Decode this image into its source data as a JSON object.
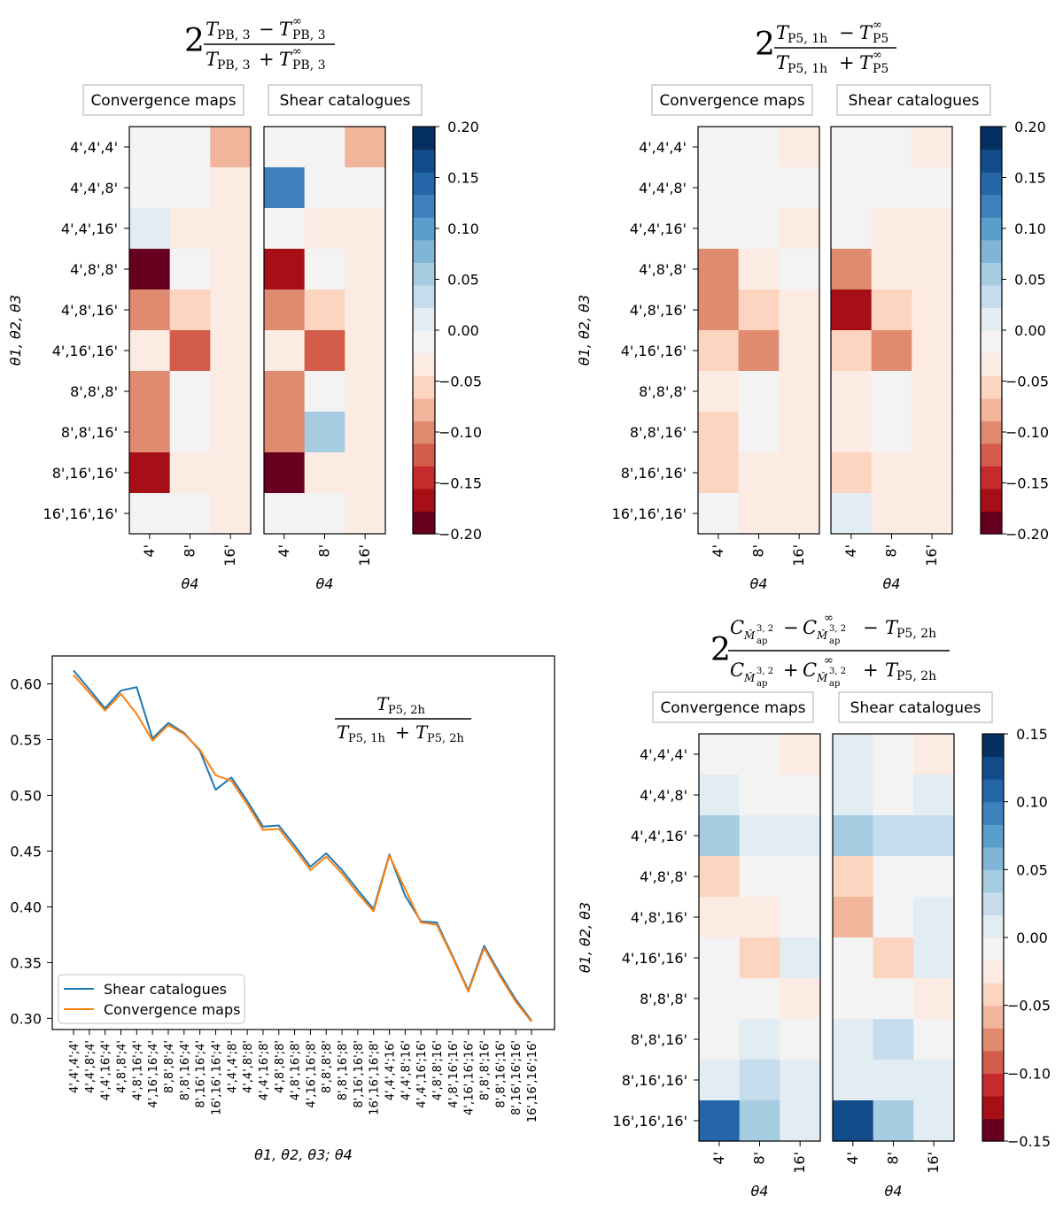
{
  "colors": {
    "scale": [
      "#67001f",
      "#a50f15",
      "#c52a2d",
      "#d45c4a",
      "#e08a70",
      "#f1b59c",
      "#fbd5c0",
      "#fcebe2",
      "#f3f3f3",
      "#e2ecf3",
      "#c6dcec",
      "#a6cce1",
      "#80b5d7",
      "#5a9ecb",
      "#3d80bb",
      "#2566a8",
      "#134c8b",
      "#053061"
    ],
    "shear_line": "#1f77b4",
    "conv_line": "#ff7f0e"
  },
  "text": {
    "box_conv": "Convergence maps",
    "box_shear": "Shear catalogues",
    "ylabel": "θ1, θ2, θ3",
    "xlabel": "θ4",
    "f1": {
      "num_a": "T",
      "num_a_sub": "PB, 3",
      "minus": "−",
      "num_b": "T",
      "num_b_sub": "PB, 3",
      "num_b_sup": "∞",
      "den_a": "T",
      "den_a_sub": "PB, 3",
      "plus": "+",
      "den_b": "T",
      "den_b_sub": "PB, 3",
      "den_b_sup": "∞",
      "two": "2"
    },
    "f2": {
      "num_a": "T",
      "num_a_sub": "P5, 1h",
      "minus": "−",
      "num_b": "T",
      "num_b_sub": "P5",
      "num_b_sup": "∞",
      "den_a": "T",
      "den_a_sub": "P5, 1h",
      "plus": "+",
      "den_b": "T",
      "den_b_sub": "P5",
      "den_b_sup": "∞",
      "two": "2"
    },
    "f3": {
      "c1": "C",
      "m1": "M̂",
      "m1_sup": "3, 2",
      "m1_sub": "ap",
      "minus1": "−",
      "c2": "C",
      "c2_sup": "∞",
      "m2": "M̂",
      "m2_sup": "3, 2",
      "m2_sub": "ap",
      "minus2": "−",
      "t1": "T",
      "t1_sub": "P5, 2h",
      "c3": "C",
      "m3": "M̂",
      "m3_sup": "3, 2",
      "m3_sub": "ap",
      "plus1": "+",
      "c4": "C",
      "c4_sup": "∞",
      "m4": "M̂",
      "m4_sup": "3, 2",
      "m4_sub": "ap",
      "plus2": "+",
      "t2": "T",
      "t2_sub": "P5, 2h",
      "two": "2"
    },
    "line_title": {
      "num": "T",
      "num_sub": "P5, 2h",
      "den_a": "T",
      "den_a_sub": "P5, 1h",
      "plus": "+",
      "den_b": "T",
      "den_b_sub": "P5, 2h"
    }
  },
  "chart_data": [
    {
      "type": "heatmap",
      "id": "top-left",
      "title": "2(T_PB,3 − T∞_PB,3)/(T_PB,3 + T∞_PB,3)",
      "rows": [
        "4',4',4'",
        "4',4',8'",
        "4',4',16'",
        "4',8',8'",
        "4',8',16'",
        "4',16',16'",
        "8',8',8'",
        "8',8',16'",
        "8',16',16'",
        "16',16',16'"
      ],
      "cols": [
        "4'",
        "8'",
        "16'"
      ],
      "xlabel": "θ4",
      "ylabel": "θ1, θ2, θ3",
      "vmin": -0.2,
      "vmax": 0.2,
      "cbar_ticks": [
        "0.20",
        "0.15",
        "0.10",
        "0.05",
        "0.00",
        "−0.05",
        "−0.10",
        "−0.15",
        "−0.20"
      ],
      "panels": [
        {
          "label": "Convergence maps",
          "values": [
            [
              -0.005,
              -0.005,
              -0.07
            ],
            [
              -0.005,
              -0.005,
              -0.03
            ],
            [
              0.02,
              -0.03,
              -0.03
            ],
            [
              -0.2,
              -0.005,
              -0.03
            ],
            [
              -0.09,
              -0.06,
              -0.03
            ],
            [
              -0.03,
              -0.12,
              -0.03
            ],
            [
              -0.09,
              -0.005,
              -0.03
            ],
            [
              -0.09,
              -0.005,
              -0.03
            ],
            [
              -0.17,
              -0.03,
              -0.03
            ],
            [
              -0.005,
              -0.005,
              -0.03
            ]
          ]
        },
        {
          "label": "Shear catalogues",
          "values": [
            [
              -0.005,
              -0.005,
              -0.07
            ],
            [
              0.12,
              -0.005,
              -0.005
            ],
            [
              -0.005,
              -0.03,
              -0.03
            ],
            [
              -0.16,
              -0.005,
              -0.03
            ],
            [
              -0.09,
              -0.06,
              -0.03
            ],
            [
              -0.03,
              -0.12,
              -0.03
            ],
            [
              -0.09,
              -0.005,
              -0.03
            ],
            [
              -0.09,
              0.065,
              -0.03
            ],
            [
              -0.2,
              -0.03,
              -0.03
            ],
            [
              -0.005,
              -0.005,
              -0.03
            ]
          ]
        }
      ]
    },
    {
      "type": "heatmap",
      "id": "top-right",
      "title": "2(T_P5,1h − T∞_P5)/(T_P5,1h + T∞_P5)",
      "rows": [
        "4',4',4'",
        "4',4',8'",
        "4',4',16'",
        "4',8',8'",
        "4',8',16'",
        "4',16',16'",
        "8',8',8'",
        "8',8',16'",
        "8',16',16'",
        "16',16',16'"
      ],
      "cols": [
        "4'",
        "8'",
        "16'"
      ],
      "xlabel": "θ4",
      "ylabel": "θ1, θ2, θ3",
      "vmin": -0.2,
      "vmax": 0.2,
      "cbar_ticks": [
        "0.20",
        "0.15",
        "0.10",
        "0.05",
        "0.00",
        "−0.05",
        "−0.10",
        "−0.15",
        "−0.20"
      ],
      "panels": [
        {
          "label": "Convergence maps",
          "values": [
            [
              -0.005,
              -0.005,
              -0.03
            ],
            [
              -0.005,
              -0.005,
              -0.005
            ],
            [
              -0.005,
              -0.005,
              -0.03
            ],
            [
              -0.09,
              -0.03,
              -0.005
            ],
            [
              -0.09,
              -0.06,
              -0.03
            ],
            [
              -0.06,
              -0.09,
              -0.03
            ],
            [
              -0.03,
              -0.005,
              -0.03
            ],
            [
              -0.06,
              -0.005,
              -0.03
            ],
            [
              -0.06,
              -0.03,
              -0.03
            ],
            [
              -0.005,
              -0.03,
              -0.03
            ]
          ]
        },
        {
          "label": "Shear catalogues",
          "values": [
            [
              -0.005,
              -0.005,
              -0.03
            ],
            [
              -0.005,
              -0.005,
              -0.005
            ],
            [
              -0.005,
              -0.03,
              -0.03
            ],
            [
              -0.09,
              -0.03,
              -0.03
            ],
            [
              -0.16,
              -0.06,
              -0.03
            ],
            [
              -0.06,
              -0.09,
              -0.03
            ],
            [
              -0.03,
              -0.005,
              -0.03
            ],
            [
              -0.03,
              -0.005,
              -0.03
            ],
            [
              -0.06,
              -0.03,
              -0.03
            ],
            [
              0.02,
              -0.03,
              -0.03
            ]
          ]
        }
      ]
    },
    {
      "type": "heatmap",
      "id": "bottom-right",
      "title": "2(C − C∞ − T_P5,2h)/(C + C∞ + T_P5,2h)",
      "rows": [
        "4',4',4'",
        "4',4',8'",
        "4',4',16'",
        "4',8',8'",
        "4',8',16'",
        "4',16',16'",
        "8',8',8'",
        "8',8',16'",
        "8',16',16'",
        "16',16',16'"
      ],
      "cols": [
        "4'",
        "8'",
        "16'"
      ],
      "xlabel": "θ4",
      "ylabel": "θ1, θ2, θ3",
      "vmin": -0.15,
      "vmax": 0.15,
      "cbar_ticks": [
        "0.15",
        "0.10",
        "0.05",
        "0.00",
        "−0.05",
        "−0.10",
        "−0.15"
      ],
      "panels": [
        {
          "label": "Convergence maps",
          "values": [
            [
              -0.005,
              -0.005,
              -0.025
            ],
            [
              0.005,
              -0.005,
              -0.005
            ],
            [
              0.045,
              0.01,
              0.01
            ],
            [
              -0.04,
              -0.005,
              -0.005
            ],
            [
              -0.02,
              -0.02,
              -0.005
            ],
            [
              -0.005,
              -0.04,
              0.01
            ],
            [
              -0.005,
              -0.005,
              -0.025
            ],
            [
              -0.005,
              0.01,
              -0.005
            ],
            [
              0.01,
              0.025,
              0.01
            ],
            [
              0.11,
              0.045,
              0.01
            ]
          ]
        },
        {
          "label": "Shear catalogues",
          "values": [
            [
              0.005,
              -0.005,
              -0.025
            ],
            [
              0.005,
              -0.005,
              0.01
            ],
            [
              0.045,
              0.025,
              0.025
            ],
            [
              -0.04,
              -0.005,
              -0.005
            ],
            [
              -0.065,
              -0.005,
              0.01
            ],
            [
              -0.005,
              -0.04,
              0.01
            ],
            [
              -0.005,
              -0.005,
              -0.025
            ],
            [
              0.005,
              0.025,
              -0.005
            ],
            [
              0.01,
              0.01,
              0.01
            ],
            [
              0.13,
              0.045,
              0.01
            ]
          ]
        }
      ]
    },
    {
      "type": "line",
      "id": "bottom-left",
      "title": "T_P5,2h/(T_P5,1h + T_P5,2h)",
      "xlabel": "θ1, θ2, θ3; θ4",
      "ylim": [
        0.29,
        0.625
      ],
      "yticks": [
        "0.60",
        "0.55",
        "0.50",
        "0.45",
        "0.40",
        "0.35",
        "0.30"
      ],
      "categories": [
        "4',4',4';4'",
        "4',4',8';4'",
        "4',4',16';4'",
        "4',8',8';4'",
        "4',8',16';4'",
        "4',16',16';4'",
        "8',8',8';4'",
        "8',8',16';4'",
        "8',16',16';4'",
        "16',16',16';4'",
        "4',4',4';8'",
        "4',4',8';8'",
        "4',4',16';8'",
        "4',8',8';8'",
        "4',8',16';8'",
        "4',16',16';8'",
        "8',8',8';8'",
        "8',8',16';8'",
        "8',16',16';8'",
        "16',16',16';8'",
        "4',4',4';16'",
        "4',4',8';16'",
        "4',4',16';16'",
        "4',8',8';16'",
        "4',8',16';16'",
        "4',16',16';16'",
        "8',8',8';16'",
        "8',8',16';16'",
        "8',16',16';16'",
        "16',16',16';16'"
      ],
      "series": [
        {
          "name": "Shear catalogues",
          "values": [
            0.612,
            0.595,
            0.578,
            0.594,
            0.597,
            0.551,
            0.565,
            0.556,
            0.54,
            0.505,
            0.516,
            0.495,
            0.472,
            0.473,
            0.455,
            0.436,
            0.448,
            0.433,
            0.415,
            0.398,
            0.447,
            0.41,
            0.387,
            0.386,
            0.356,
            0.325,
            0.365,
            0.34,
            0.317,
            0.298
          ]
        },
        {
          "name": "Convergence maps",
          "values": [
            0.608,
            0.592,
            0.576,
            0.591,
            0.573,
            0.549,
            0.563,
            0.555,
            0.541,
            0.518,
            0.513,
            0.492,
            0.469,
            0.47,
            0.452,
            0.433,
            0.445,
            0.43,
            0.412,
            0.396,
            0.446,
            0.416,
            0.386,
            0.384,
            0.355,
            0.324,
            0.363,
            0.338,
            0.315,
            0.297
          ]
        }
      ],
      "legend": "bottom-left"
    }
  ]
}
